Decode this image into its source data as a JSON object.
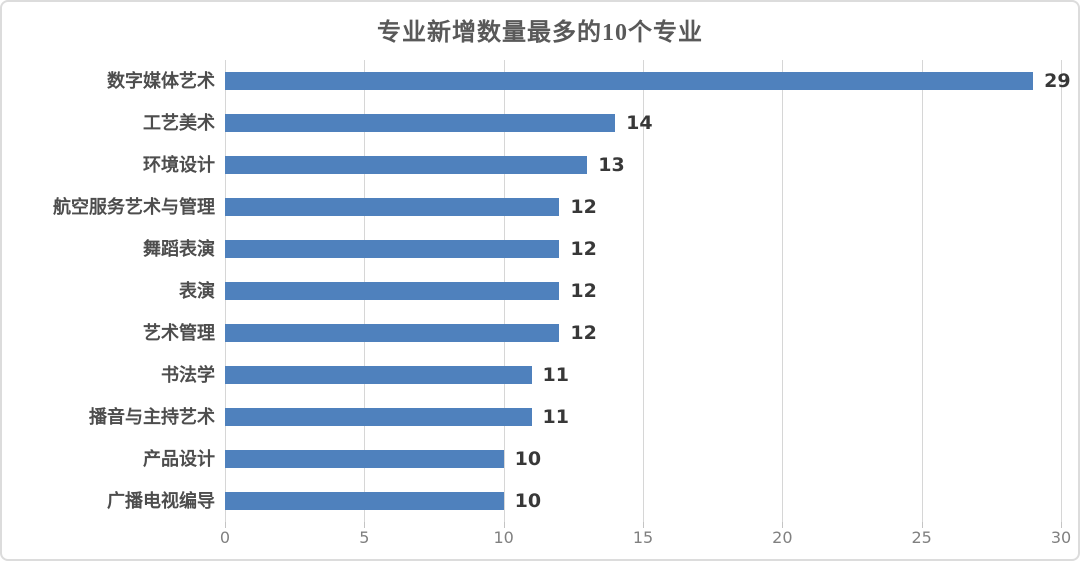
{
  "chart_data": {
    "type": "bar",
    "orientation": "horizontal",
    "title": "专业新增数量最多的10个专业",
    "categories": [
      "数字媒体艺术",
      "工艺美术",
      "环境设计",
      "航空服务艺术与管理",
      "舞蹈表演",
      "表演",
      "艺术管理",
      "书法学",
      "播音与主持艺术",
      "产品设计",
      "广播电视编导"
    ],
    "values": [
      29,
      14,
      13,
      12,
      12,
      12,
      12,
      11,
      11,
      10,
      10
    ],
    "xlabel": "",
    "ylabel": "",
    "xlim": [
      0,
      30
    ],
    "xticks": [
      0,
      5,
      10,
      15,
      20,
      25,
      30
    ],
    "grid": "vertical",
    "legend": "none",
    "value_labels": "end-of-bar",
    "colors": {
      "bar": "#4F81BD",
      "title_text": "#595959",
      "category_text": "#4d4d4d",
      "value_label_text": "#383838",
      "tick_label_text": "#808080",
      "gridline": "#d6d6d6",
      "frame_border": "#dcdcdc",
      "background": "#ffffff"
    }
  }
}
